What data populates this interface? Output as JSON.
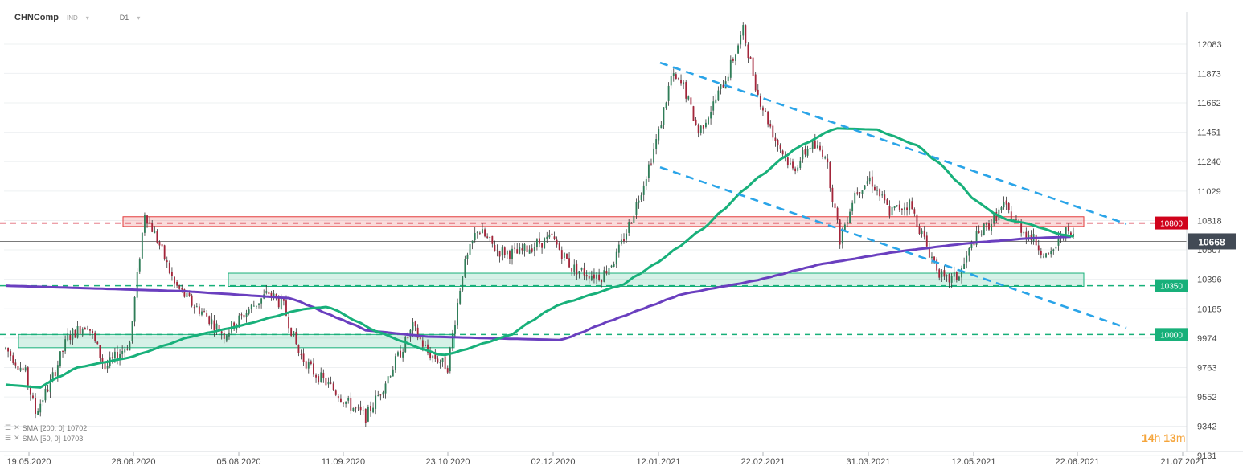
{
  "header": {
    "symbol": "CHNComp",
    "type": "IND",
    "timeframe": "D1"
  },
  "indicators": [
    {
      "label": "SMA",
      "params": "[200, 0]",
      "value": "10702",
      "color": "#6a3fbf"
    },
    {
      "label": "SMA",
      "params": "[50, 0]",
      "value": "10703",
      "color": "#18b07a"
    }
  ],
  "timer": {
    "hours": "14",
    "h_unit": "h",
    "minutes": "13",
    "m_unit": "m"
  },
  "chart_data": {
    "type": "candlestick",
    "x_ticks": [
      "19.05.2020",
      "26.06.2020",
      "05.08.2020",
      "11.09.2020",
      "23.10.2020",
      "02.12.2020",
      "12.01.2021",
      "22.02.2021",
      "31.03.2021",
      "12.05.2021",
      "22.06.2021",
      "21.07.2021"
    ],
    "y_ticks": [
      12083,
      11873,
      11662,
      11451,
      11240,
      11029,
      10818,
      10607,
      10396,
      10185,
      9974,
      9763,
      9552,
      9342,
      9131
    ],
    "y_range": [
      9131,
      12294
    ],
    "current_price": 10668,
    "levels": [
      {
        "label": "10800",
        "value": 10800,
        "color": "#d0021b"
      },
      {
        "label": "10350",
        "value": 10350,
        "color": "#18b07a"
      },
      {
        "label": "10000",
        "value": 10000,
        "color": "#18b07a"
      }
    ],
    "zones": [
      {
        "name": "resistance-zone",
        "from_date": "26.06.2020",
        "to_date": "22.06.2021",
        "low": 10775,
        "high": 10845,
        "color": "#e23a3a"
      },
      {
        "name": "support-zone-10350",
        "from_date": "05.08.2020",
        "to_date": "22.06.2021",
        "low": 10345,
        "high": 10440,
        "color": "#18b07a"
      },
      {
        "name": "support-zone-10000",
        "from_date": "19.05.2020",
        "to_date": "23.10.2020",
        "low": 9905,
        "high": 10000,
        "color": "#18b07a"
      }
    ],
    "trendlines": [
      {
        "name": "channel-upper",
        "x1": "12.01.2021",
        "y1": 11950,
        "x2": "21.07.2021",
        "y2": 10650,
        "color": "#2aa4e8"
      },
      {
        "name": "channel-lower",
        "x1": "12.01.2021",
        "y1": 11200,
        "x2": "21.07.2021",
        "y2": 9905,
        "color": "#2aa4e8"
      }
    ],
    "sma200_anchors": [
      [
        0,
        10350
      ],
      [
        60,
        10310
      ],
      [
        95,
        10260
      ],
      [
        120,
        10030
      ],
      [
        140,
        9985
      ],
      [
        185,
        9960
      ],
      [
        200,
        10090
      ],
      [
        225,
        10290
      ],
      [
        250,
        10390
      ],
      [
        270,
        10500
      ],
      [
        295,
        10590
      ],
      [
        320,
        10655
      ],
      [
        340,
        10690
      ],
      [
        355,
        10702
      ]
    ],
    "sma50_anchors": [
      [
        0,
        9640
      ],
      [
        12,
        9620
      ],
      [
        25,
        9760
      ],
      [
        45,
        9840
      ],
      [
        65,
        9980
      ],
      [
        85,
        10070
      ],
      [
        105,
        10180
      ],
      [
        115,
        10200
      ],
      [
        130,
        10040
      ],
      [
        145,
        9920
      ],
      [
        155,
        9850
      ],
      [
        160,
        9870
      ],
      [
        180,
        10000
      ],
      [
        195,
        10200
      ],
      [
        220,
        10360
      ],
      [
        235,
        10560
      ],
      [
        250,
        10790
      ],
      [
        265,
        11080
      ],
      [
        280,
        11320
      ],
      [
        295,
        11480
      ],
      [
        310,
        11470
      ],
      [
        325,
        11350
      ],
      [
        335,
        11180
      ],
      [
        345,
        10960
      ],
      [
        355,
        10830
      ],
      [
        365,
        10790
      ],
      [
        375,
        10720
      ],
      [
        380,
        10703
      ]
    ],
    "candle_anchors": [
      [
        0,
        9900
      ],
      [
        8,
        9720
      ],
      [
        12,
        9440
      ],
      [
        18,
        9650
      ],
      [
        25,
        9980
      ],
      [
        33,
        10080
      ],
      [
        40,
        9760
      ],
      [
        50,
        9940
      ],
      [
        56,
        10880
      ],
      [
        62,
        10640
      ],
      [
        68,
        10360
      ],
      [
        75,
        10220
      ],
      [
        80,
        10150
      ],
      [
        88,
        10000
      ],
      [
        98,
        10180
      ],
      [
        106,
        10300
      ],
      [
        112,
        10200
      ],
      [
        118,
        9870
      ],
      [
        124,
        9730
      ],
      [
        130,
        9640
      ],
      [
        138,
        9500
      ],
      [
        145,
        9410
      ],
      [
        150,
        9560
      ],
      [
        158,
        9840
      ],
      [
        164,
        10050
      ],
      [
        170,
        9870
      ],
      [
        178,
        9770
      ],
      [
        184,
        10450
      ],
      [
        190,
        10760
      ],
      [
        198,
        10600
      ],
      [
        206,
        10580
      ],
      [
        214,
        10650
      ],
      [
        220,
        10690
      ],
      [
        228,
        10480
      ],
      [
        234,
        10440
      ],
      [
        240,
        10420
      ],
      [
        246,
        10560
      ],
      [
        252,
        10830
      ],
      [
        258,
        11150
      ],
      [
        263,
        11450
      ],
      [
        268,
        11850
      ],
      [
        273,
        11780
      ],
      [
        279,
        11450
      ],
      [
        285,
        11650
      ],
      [
        291,
        11880
      ],
      [
        297,
        12180
      ],
      [
        303,
        11720
      ],
      [
        310,
        11400
      ],
      [
        317,
        11180
      ],
      [
        324,
        11360
      ],
      [
        330,
        11300
      ],
      [
        336,
        10680
      ],
      [
        342,
        11020
      ],
      [
        348,
        11120
      ],
      [
        356,
        10880
      ],
      [
        364,
        10940
      ],
      [
        372,
        10590
      ],
      [
        378,
        10380
      ],
      [
        384,
        10420
      ],
      [
        390,
        10680
      ],
      [
        396,
        10790
      ],
      [
        402,
        10920
      ],
      [
        408,
        10780
      ],
      [
        414,
        10680
      ],
      [
        420,
        10540
      ],
      [
        426,
        10740
      ],
      [
        430,
        10700
      ]
    ],
    "n_candles": 431
  }
}
